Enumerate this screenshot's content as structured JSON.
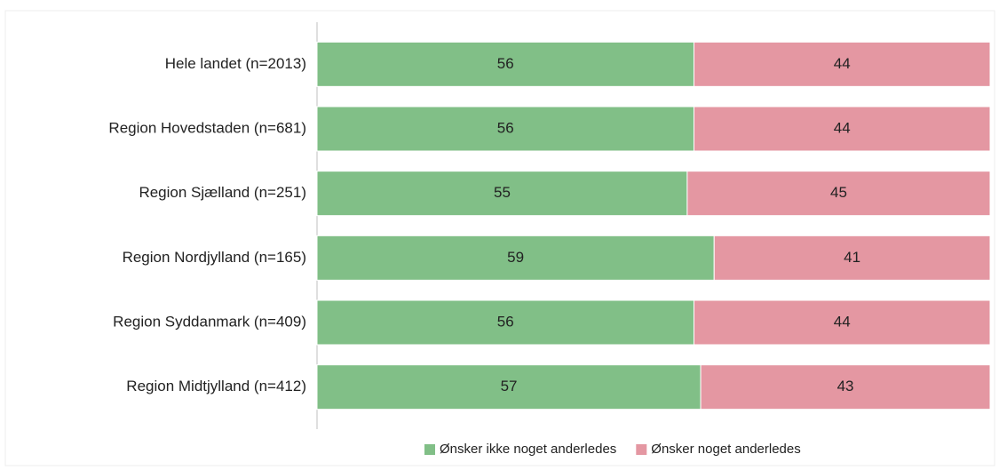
{
  "chart_data": {
    "type": "bar",
    "orientation": "horizontal",
    "stacked": true,
    "categories": [
      "Hele landet (n=2013)",
      "Region Hovedstaden (n=681)",
      "Region Sjælland (n=251)",
      "Region Nordjylland (n=165)",
      "Region Syddanmark (n=409)",
      "Region Midtjylland (n=412)"
    ],
    "series": [
      {
        "name": "Ønsker ikke noget anderledes",
        "color": "#81bf87",
        "values": [
          56,
          56,
          55,
          59,
          56,
          57
        ]
      },
      {
        "name": "Ønsker noget anderledes",
        "color": "#e497a2",
        "values": [
          44,
          44,
          45,
          41,
          44,
          43
        ]
      }
    ],
    "xlim": [
      0,
      100
    ],
    "legend": "bottom"
  }
}
